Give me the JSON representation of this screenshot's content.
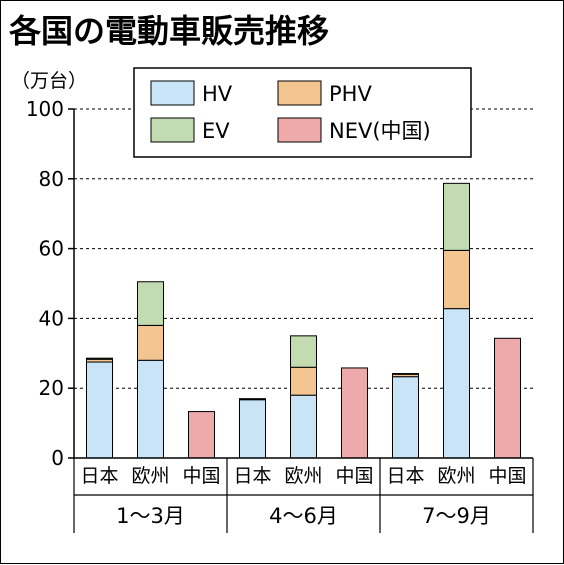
{
  "title": "各国の電動車販売推移",
  "unit_label": "（万台）",
  "colors": {
    "HV": "#c9e4f6",
    "PHV": "#f3c591",
    "EV": "#c3dbb1",
    "NEV": "#eeaaaa"
  },
  "chart_data": {
    "type": "bar",
    "stacked": true,
    "ylim": [
      0,
      100
    ],
    "yticks": [
      0,
      20,
      40,
      60,
      80,
      100
    ],
    "grid": true,
    "legend_position": "top",
    "legend": [
      "HV",
      "PHV",
      "EV",
      "NEV(中国)"
    ],
    "groups": [
      {
        "label": "1～3月",
        "bars": [
          {
            "category": "日本",
            "HV": 27.5,
            "PHV": 0.8,
            "EV": 0.3,
            "NEV": 0
          },
          {
            "category": "欧州",
            "HV": 28,
            "PHV": 10,
            "EV": 12.5,
            "NEV": 0
          },
          {
            "category": "中国",
            "HV": 0,
            "PHV": 0,
            "EV": 0,
            "NEV": 13.3
          }
        ]
      },
      {
        "label": "4～6月",
        "bars": [
          {
            "category": "日本",
            "HV": 16.7,
            "PHV": 0.2,
            "EV": 0.1,
            "NEV": 0
          },
          {
            "category": "欧州",
            "HV": 18,
            "PHV": 8,
            "EV": 9,
            "NEV": 0
          },
          {
            "category": "中国",
            "HV": 0,
            "PHV": 0,
            "EV": 0,
            "NEV": 25.8
          }
        ]
      },
      {
        "label": "7～9月",
        "bars": [
          {
            "category": "日本",
            "HV": 23.3,
            "PHV": 0.7,
            "EV": 0.2,
            "NEV": 0
          },
          {
            "category": "欧州",
            "HV": 42.8,
            "PHV": 16.7,
            "EV": 19.2,
            "NEV": 0
          },
          {
            "category": "中国",
            "HV": 0,
            "PHV": 0,
            "EV": 0,
            "NEV": 34.3
          }
        ]
      }
    ]
  }
}
